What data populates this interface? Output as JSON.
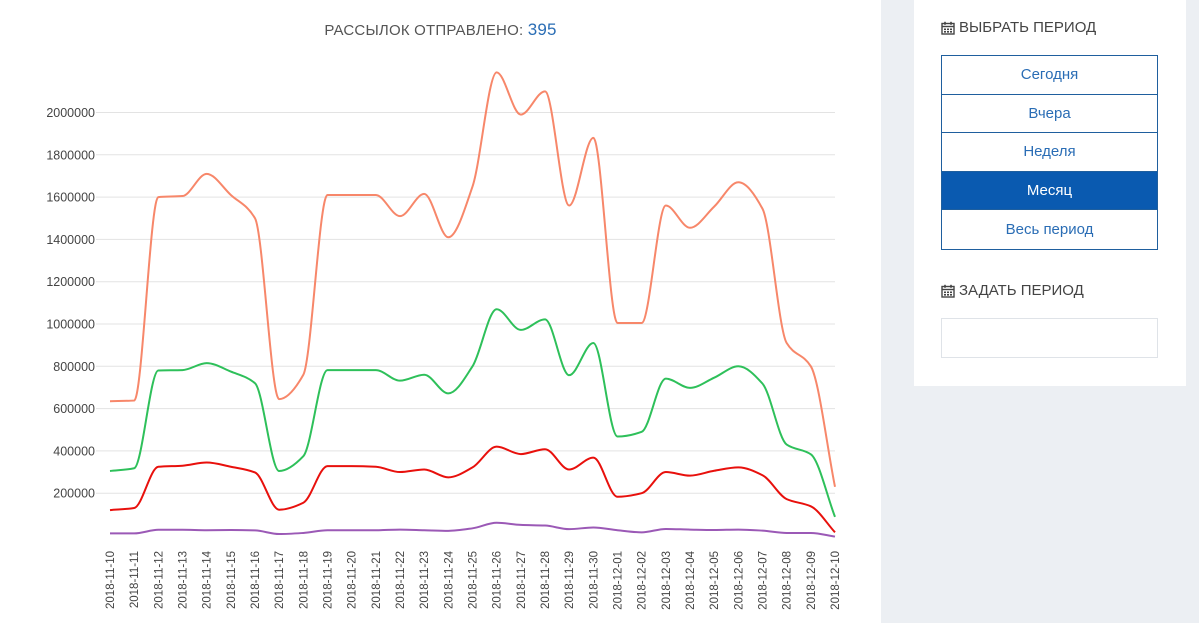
{
  "chart_panel": {
    "title_prefix": "РАССЫЛОК ОТПРАВЛЕНО:",
    "title_count": "395"
  },
  "sidebar": {
    "choose_period_title": "ВЫБРАТЬ ПЕРИОД",
    "period_options": [
      {
        "label": "Сегодня",
        "active": false
      },
      {
        "label": "Вчера",
        "active": false
      },
      {
        "label": "Неделя",
        "active": false
      },
      {
        "label": "Месяц",
        "active": true
      },
      {
        "label": "Весь период",
        "active": false
      }
    ],
    "set_period_title": "ЗАДАТЬ ПЕРИОД",
    "period_input_value": "",
    "icon": "calendar-icon"
  },
  "colors": {
    "accent": "#0a5ab0",
    "link": "#2a6db5"
  },
  "chart_data": {
    "type": "line",
    "title": "",
    "xlabel": "",
    "ylabel": "",
    "ylim": [
      0,
      2000000
    ],
    "yticks": [
      200000,
      400000,
      600000,
      800000,
      1000000,
      1200000,
      1400000,
      1600000,
      1800000,
      2000000
    ],
    "grid": true,
    "legend": "none",
    "x": [
      "2018-11-10",
      "2018-11-11",
      "2018-11-12",
      "2018-11-13",
      "2018-11-14",
      "2018-11-15",
      "2018-11-16",
      "2018-11-17",
      "2018-11-18",
      "2018-11-19",
      "2018-11-20",
      "2018-11-21",
      "2018-11-22",
      "2018-11-23",
      "2018-11-24",
      "2018-11-25",
      "2018-11-26",
      "2018-11-27",
      "2018-11-28",
      "2018-11-29",
      "2018-11-30",
      "2018-12-01",
      "2018-12-02",
      "2018-12-03",
      "2018-12-04",
      "2018-12-05",
      "2018-12-06",
      "2018-12-07",
      "2018-12-08",
      "2018-12-09",
      "2018-12-10"
    ],
    "series": [
      {
        "color": "#f7876a",
        "values": [
          635000,
          638000,
          1600000,
          1605000,
          1710000,
          1610000,
          1500000,
          645000,
          760000,
          1610000,
          1610000,
          1610000,
          1510000,
          1615000,
          1410000,
          1650000,
          2190000,
          1990000,
          2100000,
          1560000,
          1880000,
          1005000,
          1005000,
          1560000,
          1455000,
          1555000,
          1670000,
          1545000,
          910000,
          800000,
          230000
        ]
      },
      {
        "color": "#2ec05a",
        "values": [
          305000,
          318000,
          780000,
          782000,
          815000,
          775000,
          720000,
          305000,
          375000,
          782000,
          782000,
          782000,
          732000,
          760000,
          672000,
          800000,
          1070000,
          972000,
          1022000,
          758000,
          910000,
          468000,
          490000,
          742000,
          698000,
          746000,
          800000,
          718000,
          430000,
          384000,
          88000
        ]
      },
      {
        "color": "#e8100c",
        "values": [
          120000,
          130000,
          325000,
          330000,
          345000,
          325000,
          298000,
          122000,
          155000,
          328000,
          328000,
          325000,
          300000,
          312000,
          275000,
          322000,
          420000,
          385000,
          408000,
          312000,
          368000,
          183000,
          200000,
          300000,
          283000,
          306000,
          322000,
          285000,
          172000,
          138000,
          15000
        ]
      },
      {
        "color": "#9b59b6",
        "values": [
          10000,
          10000,
          27000,
          27000,
          25000,
          26000,
          24000,
          7000,
          12000,
          25000,
          25000,
          25000,
          28000,
          25000,
          22000,
          34000,
          60000,
          50000,
          47000,
          30000,
          38000,
          25000,
          15000,
          31000,
          28000,
          26000,
          28000,
          23000,
          12000,
          12000,
          -5000
        ]
      }
    ]
  }
}
